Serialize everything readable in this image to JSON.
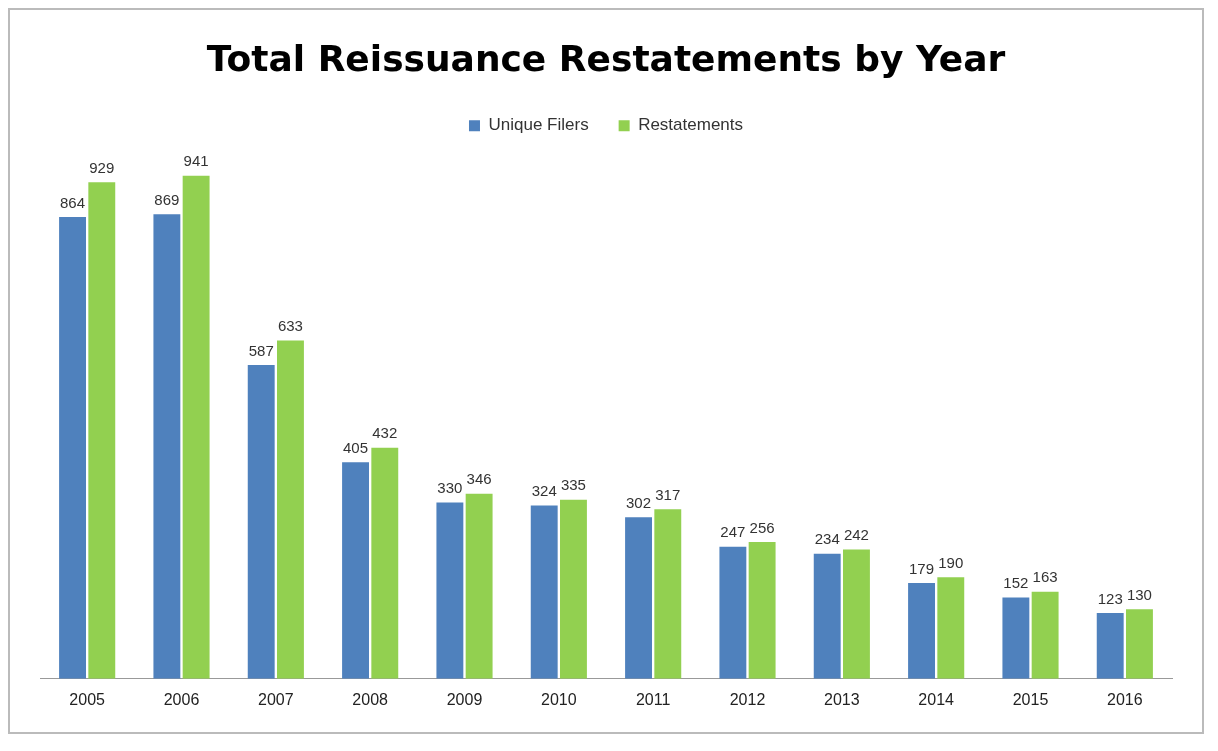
{
  "chart_data": {
    "type": "bar",
    "title": "Total Reissuance Restatements by Year",
    "categories": [
      "2005",
      "2006",
      "2007",
      "2008",
      "2009",
      "2010",
      "2011",
      "2012",
      "2013",
      "2014",
      "2015",
      "2016"
    ],
    "series": [
      {
        "name": "Unique Filers",
        "color": "#4f81bd",
        "values": [
          864,
          869,
          587,
          405,
          330,
          324,
          302,
          247,
          234,
          179,
          152,
          123
        ]
      },
      {
        "name": "Restatements",
        "color": "#92d050",
        "values": [
          929,
          941,
          633,
          432,
          346,
          335,
          317,
          256,
          242,
          190,
          163,
          130
        ]
      }
    ],
    "data_labels": true,
    "legend": "top",
    "grid": false
  }
}
